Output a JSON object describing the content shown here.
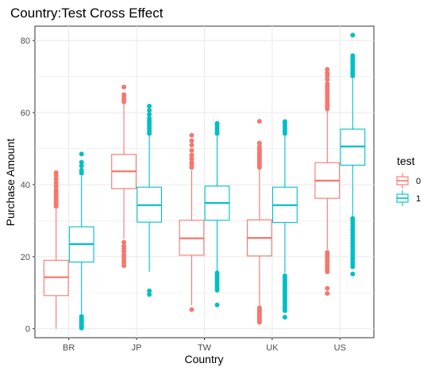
{
  "chart_data": {
    "type": "boxplot",
    "title": "Country:Test Cross Effect",
    "xlabel": "Country",
    "ylabel": "Purchase Amount",
    "categories": [
      "BR",
      "JP",
      "TW",
      "UK",
      "US"
    ],
    "ylim": [
      -2.5,
      84
    ],
    "yticks": [
      0,
      20,
      40,
      60,
      80
    ],
    "grid": true,
    "legend": {
      "title": "test",
      "position": "right",
      "entries": [
        "0",
        "1"
      ]
    },
    "series": [
      {
        "name": "0",
        "color": "#F8766D",
        "boxes": [
          {
            "category": "BR",
            "min": 0,
            "q1": 9.2,
            "median": 14.3,
            "q3": 19.0,
            "max": 33.5,
            "outliers": [
              34.0,
              34.5,
              35.0,
              35.5,
              36.0,
              36.5,
              37.0,
              37.5,
              38.0,
              38.5,
              39.5,
              40.5,
              41.5,
              42.5,
              43.3
            ]
          },
          {
            "category": "JP",
            "min": 25.0,
            "q1": 38.9,
            "median": 43.7,
            "q3": 48.4,
            "max": 62.5,
            "outliers": [
              17.5,
              18.3,
              19.0,
              19.8,
              20.5,
              21.5,
              22.3,
              23.0,
              24.0,
              63.0,
              63.7,
              64.3,
              65.0,
              67.1
            ]
          },
          {
            "category": "TW",
            "min": 6.5,
            "q1": 20.4,
            "median": 25.1,
            "q3": 30.1,
            "max": 44.0,
            "outliers": [
              5.3,
              44.8,
              45.5,
              46.2,
              47.2,
              48.2,
              49.5,
              51.0,
              52.2,
              53.7
            ]
          },
          {
            "category": "UK",
            "min": 6.5,
            "q1": 20.2,
            "median": 25.2,
            "q3": 30.2,
            "max": 44.2,
            "outliers": [
              1.8,
              2.3,
              2.8,
              3.3,
              3.8,
              4.3,
              4.8,
              5.3,
              5.8,
              44.8,
              45.3,
              45.8,
              46.3,
              46.8,
              47.3,
              47.8,
              48.3,
              48.8,
              49.3,
              49.8,
              50.5,
              51.5,
              57.6
            ]
          },
          {
            "category": "US",
            "min": 22.0,
            "q1": 36.2,
            "median": 41.1,
            "q3": 46.1,
            "max": 60.5,
            "outliers": [
              9.8,
              11.2,
              15.8,
              16.5,
              17.2,
              17.8,
              18.5,
              19.2,
              19.8,
              20.5,
              21.2,
              61.0,
              61.7,
              62.4,
              63.1,
              63.8,
              64.5,
              65.2,
              65.9,
              66.6,
              67.3,
              68.0,
              69.2,
              70.2,
              71.0,
              72.0
            ]
          }
        ]
      },
      {
        "name": "1",
        "color": "#00BFC4",
        "boxes": [
          {
            "category": "BR",
            "min": 4.0,
            "q1": 18.5,
            "median": 23.5,
            "q3": 28.3,
            "max": 42.5,
            "outliers": [
              0.2,
              0.6,
              1.0,
              1.4,
              1.8,
              2.2,
              2.6,
              3.0,
              3.4,
              43.2,
              44.0,
              45.2,
              46.2,
              48.5
            ]
          },
          {
            "category": "JP",
            "min": 15.8,
            "q1": 29.6,
            "median": 34.3,
            "q3": 39.3,
            "max": 53.5,
            "outliers": [
              9.5,
              10.5,
              54.2,
              54.9,
              55.6,
              56.3,
              57.0,
              57.7,
              58.4,
              59.5,
              60.6,
              61.8
            ]
          },
          {
            "category": "TW",
            "min": 16.0,
            "q1": 30.1,
            "median": 34.9,
            "q3": 39.6,
            "max": 53.5,
            "outliers": [
              6.6,
              10.7,
              11.3,
              12.0,
              12.7,
              13.4,
              14.1,
              14.8,
              15.5,
              54.2,
              54.9,
              55.6,
              56.3,
              57.0
            ]
          },
          {
            "category": "UK",
            "min": 15.5,
            "q1": 29.5,
            "median": 34.3,
            "q3": 39.3,
            "max": 53.5,
            "outliers": [
              3.2,
              5.0,
              5.6,
              6.2,
              6.8,
              7.4,
              8.0,
              8.6,
              9.2,
              9.8,
              10.4,
              11.0,
              11.6,
              12.2,
              12.8,
              13.4,
              14.0,
              14.7,
              54.2,
              54.9,
              55.6,
              56.3,
              57.0,
              57.5
            ]
          },
          {
            "category": "US",
            "min": 31.2,
            "q1": 45.4,
            "median": 50.6,
            "q3": 55.4,
            "max": 69.5,
            "outliers": [
              15.2,
              17.2,
              18.0,
              18.8,
              19.6,
              20.4,
              21.2,
              22.0,
              22.8,
              23.6,
              24.4,
              25.2,
              26.0,
              26.8,
              27.6,
              28.4,
              29.2,
              30.0,
              30.6,
              70.2,
              70.9,
              71.6,
              72.3,
              73.0,
              73.7,
              74.4,
              75.1,
              75.8,
              81.5
            ]
          }
        ]
      }
    ]
  }
}
